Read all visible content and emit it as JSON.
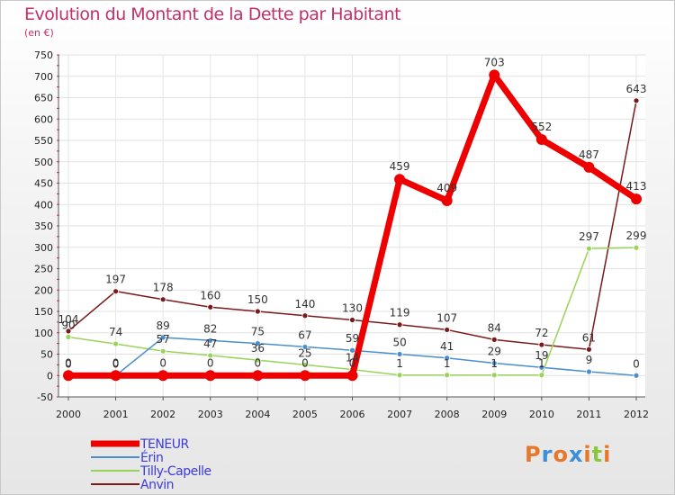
{
  "chart_data": {
    "type": "line",
    "title": "Evolution du Montant de la Dette par Habitant",
    "subtitle": "(en €)",
    "xlabel": "",
    "ylabel": "",
    "ylim": [
      -50,
      750
    ],
    "yticks": [
      -50,
      0,
      50,
      100,
      150,
      200,
      250,
      300,
      350,
      400,
      450,
      500,
      550,
      600,
      650,
      700,
      750
    ],
    "categories": [
      "2000",
      "2001",
      "2002",
      "2003",
      "2004",
      "2005",
      "2006",
      "2007",
      "2008",
      "2009",
      "2010",
      "2011",
      "2012"
    ],
    "grid": true,
    "legend_position": "bottom-left",
    "series": [
      {
        "name": "Anvin",
        "color": "#7a1a1a",
        "values": [
          104,
          197,
          178,
          160,
          150,
          140,
          130,
          119,
          107,
          84,
          72,
          61,
          643
        ]
      },
      {
        "name": "Tilly-Capelle",
        "color": "#99d45a",
        "values": [
          90,
          74,
          57,
          47,
          36,
          25,
          14,
          1,
          1,
          1,
          1,
          297,
          299
        ]
      },
      {
        "name": "Érin",
        "color": "#4a8fcc",
        "values": [
          0,
          0,
          89,
          82,
          75,
          67,
          59,
          50,
          41,
          29,
          19,
          9,
          0
        ]
      },
      {
        "name": "TENEUR",
        "color": "#ee0000",
        "values": [
          0,
          0,
          0,
          0,
          0,
          0,
          0,
          459,
          409,
          703,
          552,
          487,
          413
        ]
      }
    ],
    "legend_order": [
      "TENEUR",
      "Érin",
      "Tilly-Capelle",
      "Anvin"
    ]
  },
  "branding": {
    "logo_letters": [
      "P",
      "r",
      "o",
      "x",
      "i",
      "t",
      "i"
    ],
    "logo_colors": [
      "#e8772a",
      "#3b8fd6",
      "#e8772a",
      "#3b8fd6",
      "#e8772a",
      "#8cc63f",
      "#e8772a"
    ]
  }
}
